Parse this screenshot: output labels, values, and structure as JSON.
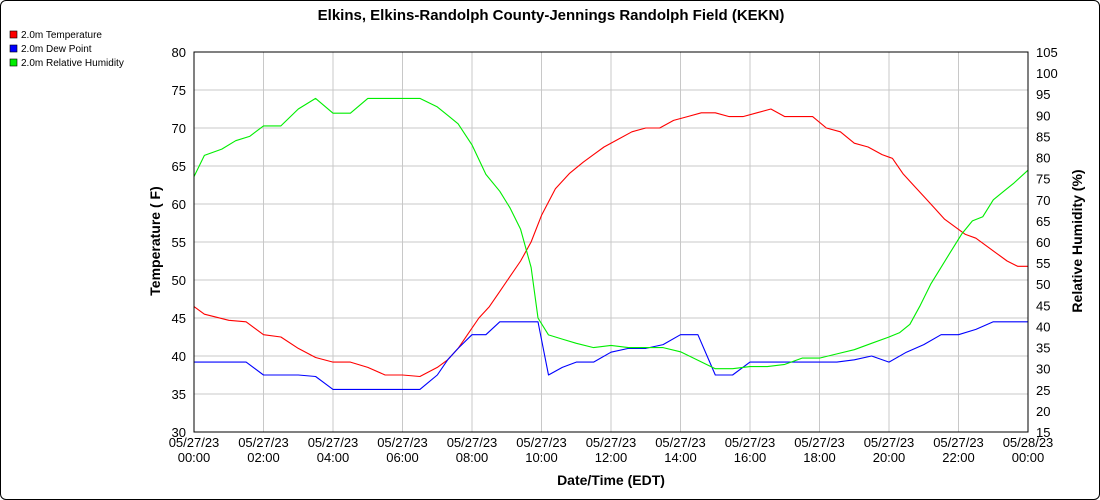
{
  "chart_data": {
    "type": "line",
    "title": "Elkins, Elkins-Randolph County-Jennings Randolph Field (KEKN)",
    "xlabel": "Date/Time (EDT)",
    "ylabel_left": "Temperature ( F)",
    "ylabel_right": "Relative Humidity (%)",
    "xlim_hours": [
      0,
      24
    ],
    "ylim_left": [
      30,
      80
    ],
    "ylim_right": [
      15,
      105
    ],
    "left_ticks": [
      30,
      35,
      40,
      45,
      50,
      55,
      60,
      65,
      70,
      75,
      80
    ],
    "right_ticks": [
      15,
      20,
      25,
      30,
      35,
      40,
      45,
      50,
      55,
      60,
      65,
      70,
      75,
      80,
      85,
      90,
      95,
      100,
      105
    ],
    "x_ticks": [
      {
        "hour": 0,
        "date": "05/27/23",
        "time": "00:00"
      },
      {
        "hour": 2,
        "date": "05/27/23",
        "time": "02:00"
      },
      {
        "hour": 4,
        "date": "05/27/23",
        "time": "04:00"
      },
      {
        "hour": 6,
        "date": "05/27/23",
        "time": "06:00"
      },
      {
        "hour": 8,
        "date": "05/27/23",
        "time": "08:00"
      },
      {
        "hour": 10,
        "date": "05/27/23",
        "time": "10:00"
      },
      {
        "hour": 12,
        "date": "05/27/23",
        "time": "12:00"
      },
      {
        "hour": 14,
        "date": "05/27/23",
        "time": "14:00"
      },
      {
        "hour": 16,
        "date": "05/27/23",
        "time": "16:00"
      },
      {
        "hour": 18,
        "date": "05/27/23",
        "time": "18:00"
      },
      {
        "hour": 20,
        "date": "05/27/23",
        "time": "20:00"
      },
      {
        "hour": 22,
        "date": "05/27/23",
        "time": "22:00"
      },
      {
        "hour": 24,
        "date": "05/28/23",
        "time": "00:00"
      }
    ],
    "grid": true,
    "legend_position": "top-left",
    "series": [
      {
        "name": "2.0m Temperature",
        "color": "#ff0000",
        "axis": "left",
        "x": [
          0,
          0.3,
          1.0,
          1.5,
          2.0,
          2.5,
          3.0,
          3.5,
          4.0,
          4.5,
          5.0,
          5.5,
          6.0,
          6.5,
          7.0,
          7.3,
          7.6,
          7.9,
          8.2,
          8.5,
          8.8,
          9.1,
          9.4,
          9.7,
          10.0,
          10.4,
          10.8,
          11.2,
          11.5,
          11.8,
          12.2,
          12.6,
          13.0,
          13.4,
          13.8,
          14.2,
          14.6,
          15.0,
          15.4,
          15.8,
          16.2,
          16.6,
          17.0,
          17.4,
          17.8,
          18.2,
          18.6,
          19.0,
          19.4,
          19.8,
          20.1,
          20.4,
          20.7,
          21.0,
          21.3,
          21.6,
          21.9,
          22.2,
          22.5,
          22.8,
          23.1,
          23.4,
          23.7,
          24.0
        ],
        "values": [
          46.5,
          45.5,
          44.7,
          44.5,
          42.8,
          42.5,
          41.0,
          39.8,
          39.2,
          39.2,
          38.5,
          37.5,
          37.5,
          37.3,
          38.5,
          39.5,
          41.0,
          43.0,
          45.0,
          46.5,
          48.5,
          50.5,
          52.5,
          55.0,
          58.5,
          62.0,
          64.0,
          65.5,
          66.5,
          67.5,
          68.5,
          69.5,
          70.0,
          70.0,
          71.0,
          71.5,
          72.0,
          72.0,
          71.5,
          71.5,
          72.0,
          72.5,
          71.5,
          71.5,
          71.5,
          70.0,
          69.5,
          68.0,
          67.5,
          66.5,
          66.0,
          64.0,
          62.5,
          61.0,
          59.5,
          58.0,
          57.0,
          56.0,
          55.5,
          54.5,
          53.5,
          52.5,
          51.8,
          51.8
        ]
      },
      {
        "name": "2.0m Dew Point",
        "color": "#0000ff",
        "axis": "left",
        "x": [
          0,
          0.8,
          1.5,
          2.0,
          2.5,
          3.0,
          3.5,
          4.0,
          4.5,
          5.0,
          5.5,
          6.0,
          6.5,
          7.0,
          7.3,
          7.6,
          8.0,
          8.4,
          8.8,
          9.2,
          9.6,
          9.9,
          10.2,
          10.6,
          11.0,
          11.5,
          12.0,
          12.5,
          13.0,
          13.5,
          14.0,
          14.5,
          15.0,
          15.5,
          16.0,
          16.5,
          17.0,
          17.5,
          18.0,
          18.5,
          19.0,
          19.5,
          20.0,
          20.5,
          21.0,
          21.5,
          22.0,
          22.5,
          23.0,
          23.5,
          24.0
        ],
        "values": [
          39.2,
          39.2,
          39.2,
          37.5,
          37.5,
          37.5,
          37.3,
          35.6,
          35.6,
          35.6,
          35.6,
          35.6,
          35.6,
          37.5,
          39.5,
          41.0,
          42.8,
          42.8,
          44.5,
          44.5,
          44.5,
          44.5,
          37.5,
          38.5,
          39.2,
          39.2,
          40.5,
          41.0,
          41.0,
          41.5,
          42.8,
          42.8,
          37.5,
          37.5,
          39.2,
          39.2,
          39.2,
          39.2,
          39.2,
          39.2,
          39.5,
          40.0,
          39.2,
          40.5,
          41.5,
          42.8,
          42.8,
          43.5,
          44.5,
          44.5,
          44.5
        ]
      },
      {
        "name": "2.0m Relative Humidity",
        "color": "#00ee00",
        "axis": "right",
        "x": [
          0,
          0.3,
          0.8,
          1.2,
          1.6,
          2.0,
          2.5,
          3.0,
          3.5,
          4.0,
          4.5,
          5.0,
          5.5,
          6.0,
          6.5,
          7.0,
          7.3,
          7.6,
          8.0,
          8.4,
          8.8,
          9.1,
          9.4,
          9.7,
          9.9,
          10.2,
          10.6,
          11.0,
          11.5,
          12.0,
          12.5,
          13.0,
          13.5,
          14.0,
          14.5,
          15.0,
          15.5,
          16.0,
          16.5,
          17.0,
          17.5,
          18.0,
          18.5,
          19.0,
          19.5,
          20.0,
          20.3,
          20.6,
          20.9,
          21.2,
          21.5,
          21.8,
          22.1,
          22.4,
          22.7,
          23.0,
          23.3,
          23.6,
          24.0
        ],
        "values": [
          75.5,
          80.5,
          82,
          84,
          85,
          87.5,
          87.5,
          91.5,
          94,
          90.5,
          90.5,
          94,
          94,
          94,
          94,
          92,
          90,
          88,
          83,
          76,
          72,
          68,
          63,
          54,
          42,
          38,
          37,
          36,
          35,
          35.5,
          35,
          35,
          35,
          34,
          32,
          30,
          30,
          30.5,
          30.5,
          31,
          32.5,
          32.5,
          33.5,
          34.5,
          36,
          37.5,
          38.5,
          40.5,
          45,
          50,
          54,
          58,
          62,
          65,
          66,
          70,
          72,
          74,
          77
        ]
      }
    ]
  }
}
